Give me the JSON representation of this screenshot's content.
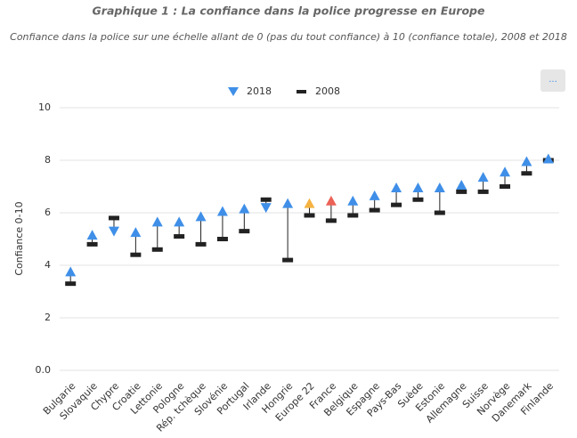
{
  "menu": "...",
  "chart_data": {
    "type": "dumbbell",
    "title": "Graphique 1 : La confiance dans la police progresse en Europe",
    "subtitle": "Confiance dans la police sur une échelle allant de 0 (pas du tout confiance) à 10 (confiance totale), 2008 et 2018",
    "y_label": "Confiance 0-10",
    "categories": [
      "Bulgarie",
      "Slovaquie",
      "Chypre",
      "Croatie",
      "Lettonie",
      "Pologne",
      "Rép. tchèque",
      "Slovénie",
      "Portugal",
      "Irlande",
      "Hongrie",
      "Europe 22",
      "France",
      "Belgique",
      "Espagne",
      "Pays-Bas",
      "Suède",
      "Estonie",
      "Allemagne",
      "Suisse",
      "Norvège",
      "Danemark",
      "Finlande"
    ],
    "series": [
      {
        "name": "2018",
        "color": "#3f8fe8",
        "values": [
          3.75,
          5.15,
          5.3,
          5.25,
          5.65,
          5.65,
          5.85,
          6.05,
          6.15,
          6.2,
          6.35,
          6.35,
          6.45,
          6.45,
          6.65,
          6.95,
          6.95,
          6.95,
          7.05,
          7.35,
          7.55,
          7.95,
          8.05
        ],
        "colors": [
          "#3f8fe8",
          "#3f8fe8",
          "#3f8fe8",
          "#3f8fe8",
          "#3f8fe8",
          "#3f8fe8",
          "#3f8fe8",
          "#3f8fe8",
          "#3f8fe8",
          "#3f8fe8",
          "#3f8fe8",
          "#f5b342",
          "#ec6257",
          "#3f8fe8",
          "#3f8fe8",
          "#3f8fe8",
          "#3f8fe8",
          "#3f8fe8",
          "#3f8fe8",
          "#3f8fe8",
          "#3f8fe8",
          "#3f8fe8",
          "#3f8fe8"
        ]
      },
      {
        "name": "2008",
        "color": "#222222",
        "values": [
          3.3,
          4.8,
          5.8,
          4.4,
          4.6,
          5.1,
          4.8,
          5.0,
          5.3,
          6.5,
          4.2,
          5.9,
          5.7,
          5.9,
          6.1,
          6.3,
          6.5,
          6.0,
          6.8,
          6.8,
          7.0,
          7.5,
          8.0
        ]
      }
    ],
    "ylim": [
      0,
      10
    ],
    "yticks": [
      {
        "value": 0,
        "label": "0.0"
      },
      2,
      4,
      6,
      8,
      10
    ],
    "grid": true,
    "legend": "top"
  }
}
